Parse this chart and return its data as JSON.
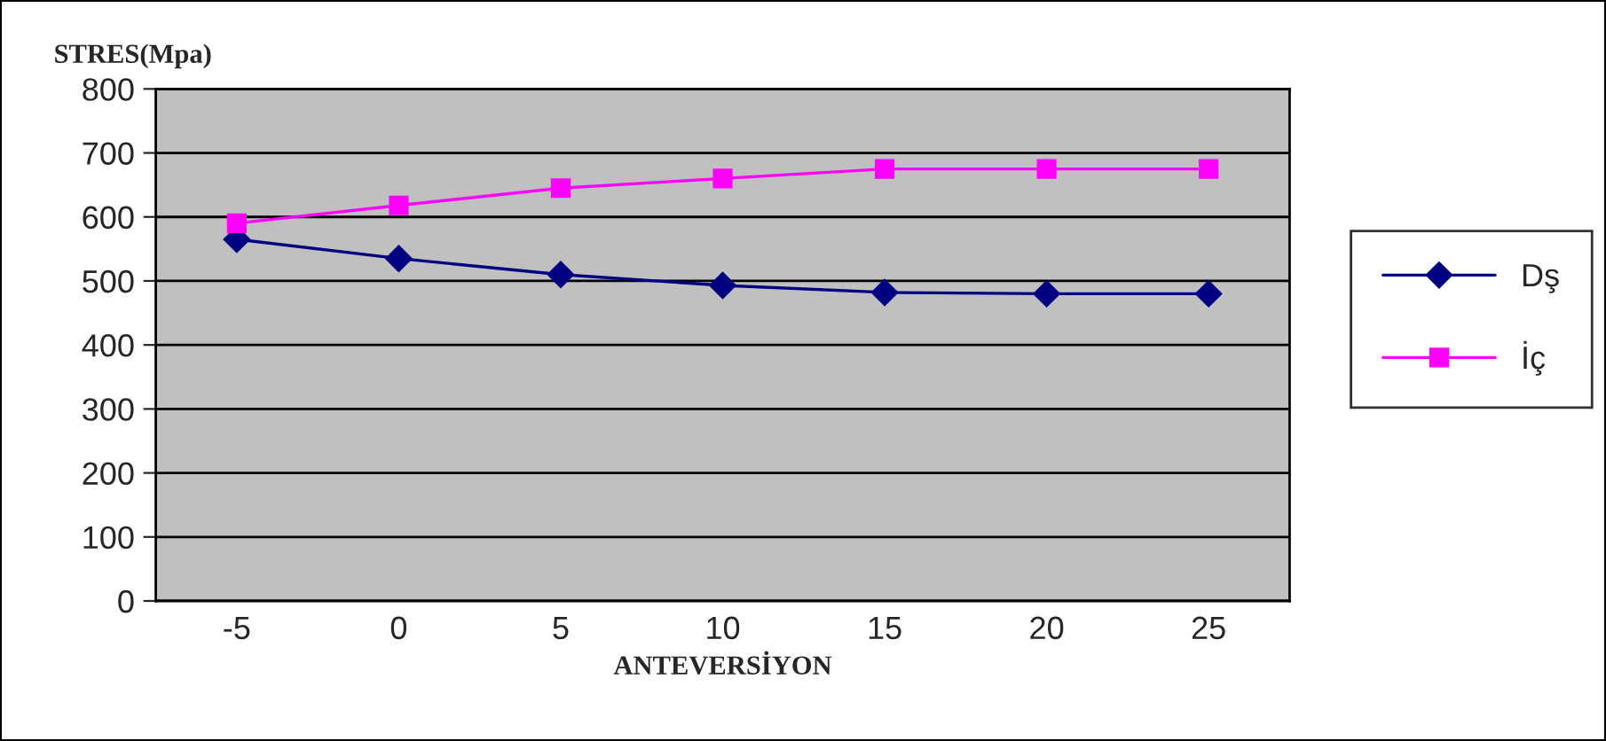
{
  "chart_data": {
    "type": "line",
    "ylabel": "STRES(Mpa)",
    "xlabel": "ANTEVERSİYON",
    "categories": [
      "-5",
      "0",
      "5",
      "10",
      "15",
      "20",
      "25"
    ],
    "series": [
      {
        "name": "Dş",
        "color": "#000080",
        "marker": "diamond",
        "values": [
          565,
          535,
          510,
          493,
          482,
          480,
          480
        ]
      },
      {
        "name": "İç",
        "color": "#ff00ff",
        "marker": "square",
        "values": [
          590,
          618,
          645,
          660,
          675,
          675,
          675
        ]
      }
    ],
    "ylim": [
      0,
      800
    ],
    "yticks": [
      0,
      100,
      200,
      300,
      400,
      500,
      600,
      700,
      800
    ],
    "grid": "y",
    "legend": "right"
  }
}
